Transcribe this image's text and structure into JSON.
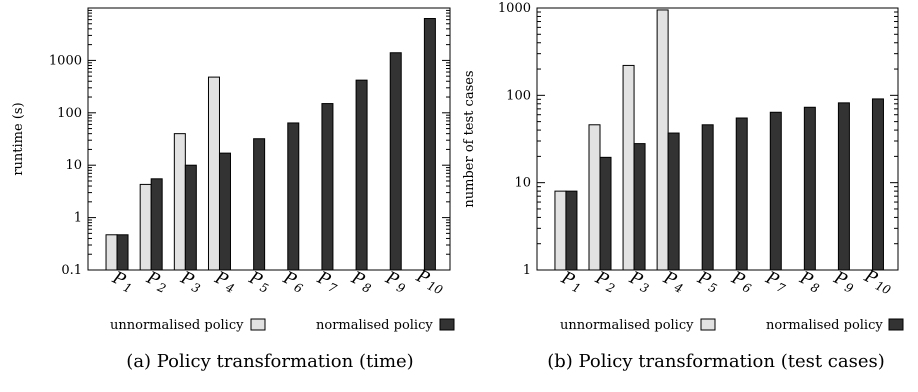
{
  "chart_data": [
    {
      "type": "bar",
      "ylabel": "runtime (s)",
      "yscale": "log",
      "ylim": [
        0.1,
        10000
      ],
      "yticks": [
        "0.1",
        "1",
        "10",
        "100",
        "1000"
      ],
      "yticks_values": [
        0.1,
        1,
        10,
        100,
        1000
      ],
      "categories": [
        "P1",
        "P2",
        "P3",
        "P4",
        "P5",
        "P6",
        "P7",
        "P8",
        "P9",
        "P10"
      ],
      "category_labels": [
        {
          "main": "P",
          "sub": "1"
        },
        {
          "main": "P",
          "sub": "2"
        },
        {
          "main": "P",
          "sub": "3"
        },
        {
          "main": "P",
          "sub": "4"
        },
        {
          "main": "P",
          "sub": "5"
        },
        {
          "main": "P",
          "sub": "6"
        },
        {
          "main": "P",
          "sub": "7"
        },
        {
          "main": "P",
          "sub": "8"
        },
        {
          "main": "P",
          "sub": "9"
        },
        {
          "main": "P",
          "sub": "10"
        }
      ],
      "series": [
        {
          "name": "unnormalised policy",
          "color": "#e2e2e2",
          "values": [
            0.47,
            4.3,
            40,
            480,
            null,
            null,
            null,
            null,
            null,
            null
          ]
        },
        {
          "name": "normalised policy",
          "color": "#333333",
          "values": [
            0.47,
            5.5,
            10,
            17,
            32,
            64,
            150,
            420,
            1400,
            6300
          ]
        }
      ],
      "legend": {
        "placement": "bottom",
        "items": [
          "unnormalised policy",
          "normalised policy"
        ]
      },
      "caption": "(a) Policy transformation (time)",
      "grid": false
    },
    {
      "type": "bar",
      "ylabel": "number of test cases",
      "yscale": "log",
      "ylim": [
        1,
        1000
      ],
      "yticks": [
        "1",
        "10",
        "100",
        "1000"
      ],
      "yticks_values": [
        1,
        10,
        100,
        1000
      ],
      "categories": [
        "P1",
        "P2",
        "P3",
        "P4",
        "P5",
        "P6",
        "P7",
        "P8",
        "P9",
        "P10"
      ],
      "category_labels": [
        {
          "main": "P",
          "sub": "1"
        },
        {
          "main": "P",
          "sub": "2"
        },
        {
          "main": "P",
          "sub": "3"
        },
        {
          "main": "P",
          "sub": "4"
        },
        {
          "main": "P",
          "sub": "5"
        },
        {
          "main": "P",
          "sub": "6"
        },
        {
          "main": "P",
          "sub": "7"
        },
        {
          "main": "P",
          "sub": "8"
        },
        {
          "main": "P",
          "sub": "9"
        },
        {
          "main": "P",
          "sub": "10"
        }
      ],
      "series": [
        {
          "name": "unnormalised policy",
          "color": "#e2e2e2",
          "values": [
            8,
            46,
            220,
            950,
            null,
            null,
            null,
            null,
            null,
            null
          ]
        },
        {
          "name": "normalised policy",
          "color": "#333333",
          "values": [
            8,
            19.5,
            28,
            37,
            46,
            55,
            64,
            73,
            82,
            91
          ]
        }
      ],
      "legend": {
        "placement": "bottom",
        "items": [
          "unnormalised policy",
          "normalised policy"
        ]
      },
      "caption": "(b) Policy transformation (test cases)",
      "grid": false
    }
  ]
}
